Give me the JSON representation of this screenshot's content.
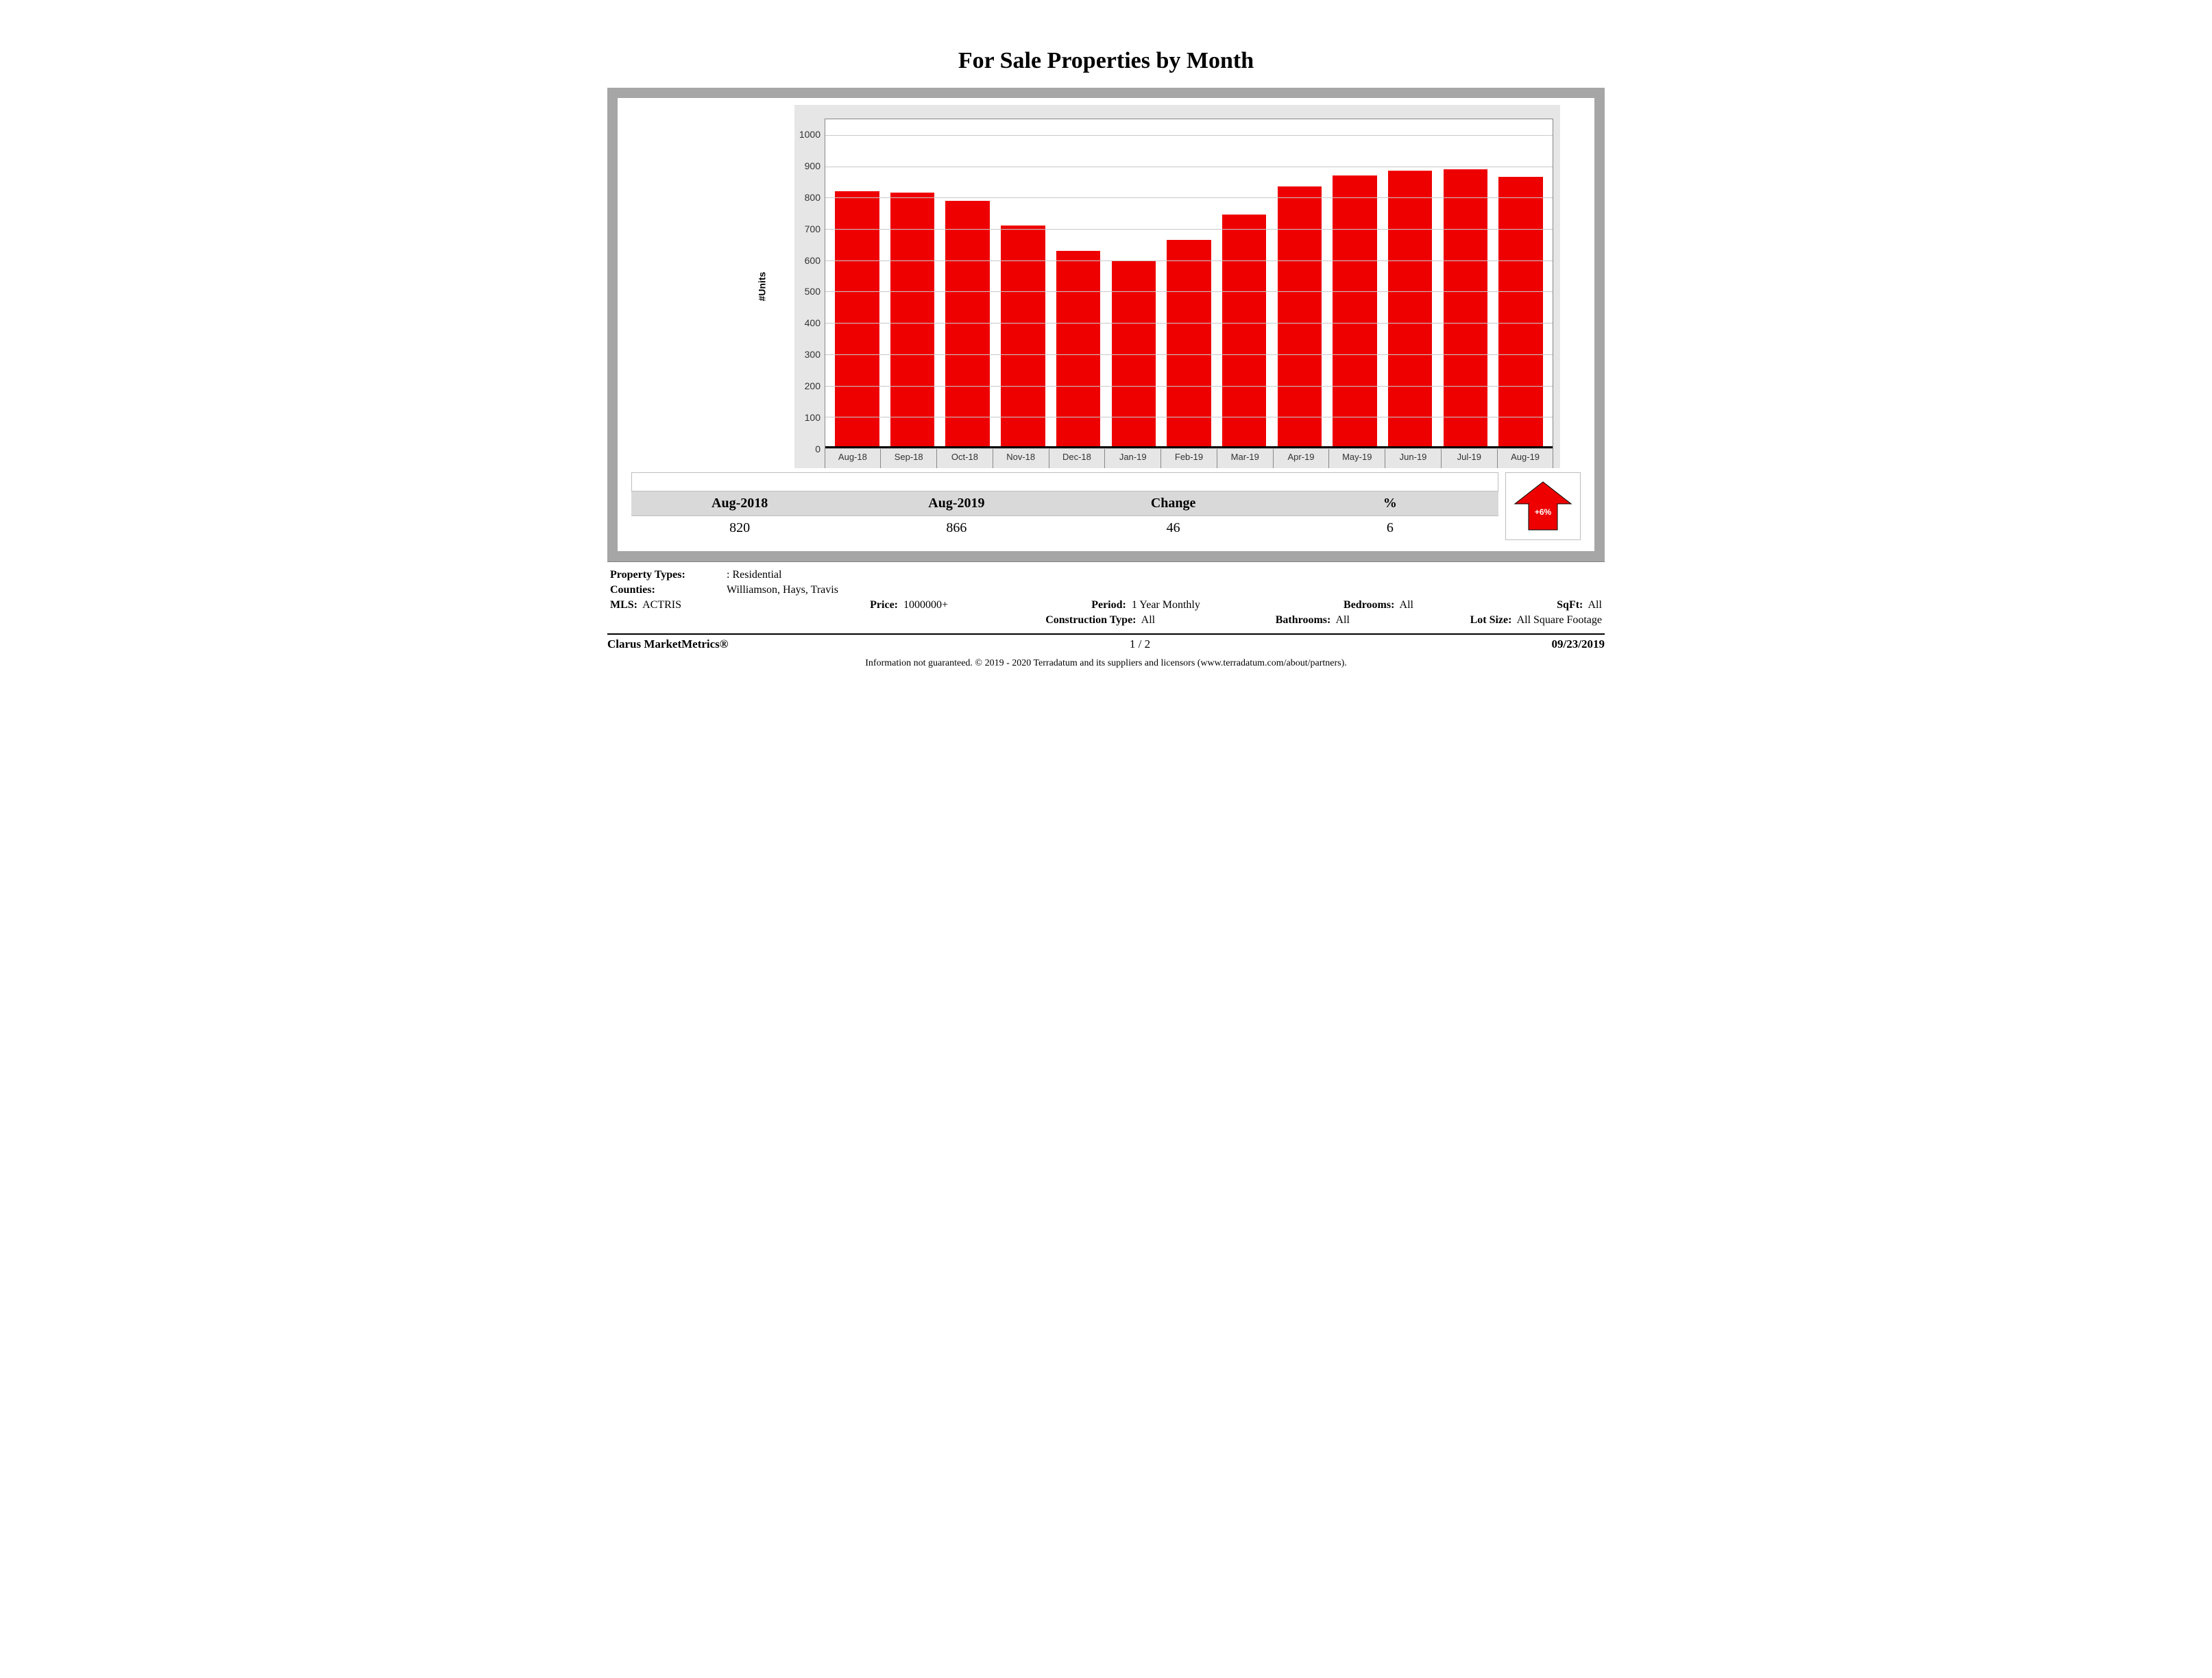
{
  "title": "For Sale Properties by Month",
  "chart": {
    "type": "bar",
    "ylabel": "#Units",
    "ylim_min": 0,
    "ylim_max": 1050,
    "ytick_step": 100,
    "bar_color": "#ee0000",
    "grid_color": "#c8c8c8",
    "plot_bg": "#ffffff",
    "outer_bg": "#e6e6e6",
    "categories": [
      "Aug-18",
      "Sep-18",
      "Oct-18",
      "Nov-18",
      "Dec-18",
      "Jan-19",
      "Feb-19",
      "Mar-19",
      "Apr-19",
      "May-19",
      "Jun-19",
      "Jul-19",
      "Aug-19"
    ],
    "values": [
      820,
      815,
      790,
      710,
      630,
      600,
      665,
      745,
      835,
      870,
      885,
      890,
      866
    ]
  },
  "summary": {
    "headers": [
      "Aug-2018",
      "Aug-2019",
      "Change",
      "%"
    ],
    "values": [
      "820",
      "866",
      "46",
      "6"
    ],
    "indicator_text": "+6%",
    "indicator_color": "#ee0000",
    "indicator_direction": "up"
  },
  "filters": {
    "property_types_label": "Property Types:",
    "property_types_value": ": Residential",
    "counties_label": "Counties:",
    "counties_value": "Williamson, Hays, Travis",
    "mls_label": "MLS:",
    "mls_value": "ACTRIS",
    "price_label": "Price:",
    "price_value": "1000000+",
    "period_label": "Period:",
    "period_value": "1 Year Monthly",
    "bedrooms_label": "Bedrooms:",
    "bedrooms_value": "All",
    "sqft_label": "SqFt:",
    "sqft_value": "All",
    "construction_label": "Construction Type:",
    "construction_value": "All",
    "bathrooms_label": "Bathrooms:",
    "bathrooms_value": "All",
    "lotsize_label": "Lot Size:",
    "lotsize_value": "All Square Footage"
  },
  "footer": {
    "brand": "Clarus MarketMetrics®",
    "page": "1 / 2",
    "date": "09/23/2019",
    "disclaimer": "Information not guaranteed. © 2019 - 2020 Terradatum and its suppliers and licensors (www.terradatum.com/about/partners)."
  }
}
